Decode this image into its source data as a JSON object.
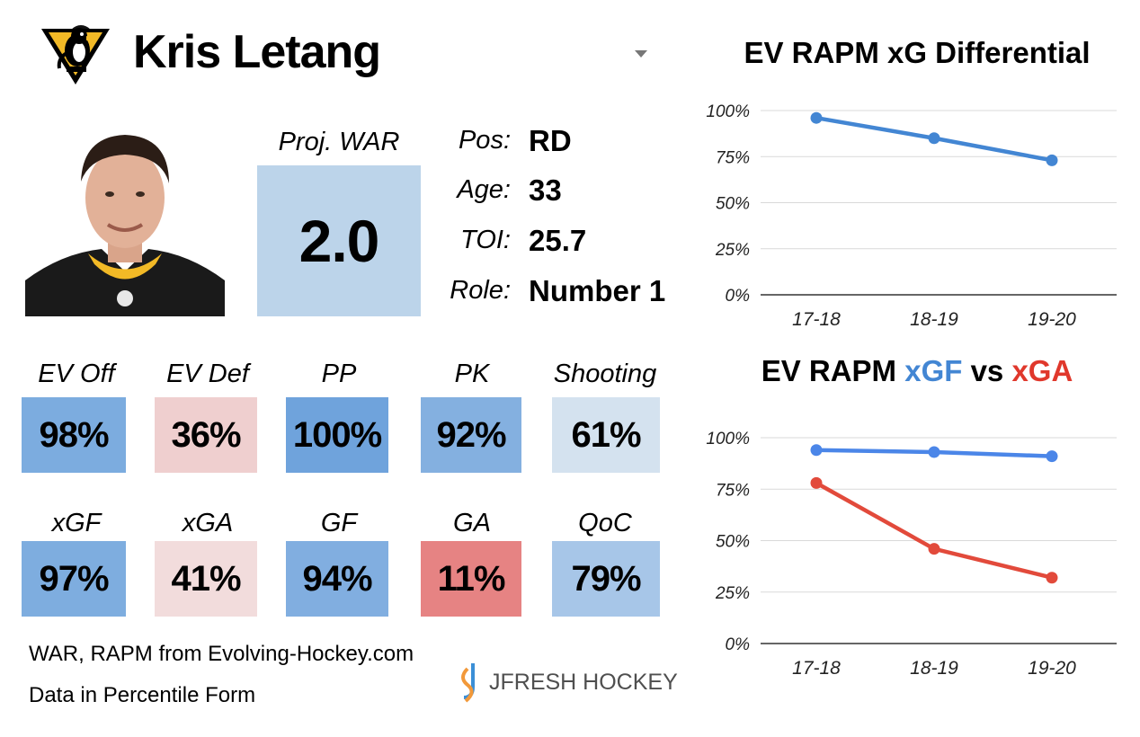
{
  "player": {
    "name": "Kris Letang",
    "logo_icon": "penguins-logo-icon",
    "photo_icon": "player-headshot-icon",
    "war_label": "Proj. WAR",
    "war_value": "2.0",
    "war_color": "#bcd4ea"
  },
  "info": [
    {
      "label": "Pos:",
      "value": "RD"
    },
    {
      "label": "Age:",
      "value": "33"
    },
    {
      "label": "TOI:",
      "value": "25.7"
    },
    {
      "label": "Role:",
      "value": "Number 1"
    }
  ],
  "tiles_row1": [
    {
      "label": "EV Off",
      "value": "98%",
      "color": "#7cacdf"
    },
    {
      "label": "EV Def",
      "value": "36%",
      "color": "#efcfcf"
    },
    {
      "label": "PP",
      "value": "100%",
      "color": "#6fa3dc"
    },
    {
      "label": "PK",
      "value": "92%",
      "color": "#84b0e0"
    },
    {
      "label": "Shooting",
      "value": "61%",
      "color": "#d4e2ef"
    }
  ],
  "tiles_row2": [
    {
      "label": "xGF",
      "value": "97%",
      "color": "#7eaddf"
    },
    {
      "label": "xGA",
      "value": "41%",
      "color": "#f2dcdc"
    },
    {
      "label": "GF",
      "value": "94%",
      "color": "#81aee0"
    },
    {
      "label": "GA",
      "value": "11%",
      "color": "#e68383"
    },
    {
      "label": "QoC",
      "value": "79%",
      "color": "#a7c6e8"
    }
  ],
  "footer": {
    "line1": "WAR, RAPM from  Evolving-Hockey.com",
    "line2": "Data in Percentile Form",
    "brand": "JFRESH HOCKEY",
    "brand_icon": "jfresh-hockey-logo-icon"
  },
  "chart_data": [
    {
      "type": "line",
      "title": "EV RAPM xG Differential",
      "categories": [
        "17-18",
        "18-19",
        "19-20"
      ],
      "series": [
        {
          "values": [
            96,
            85,
            73
          ],
          "color": "#4386d3"
        }
      ],
      "ylim": [
        0,
        100
      ],
      "yticks": [
        "100%",
        "75%",
        "50%",
        "25%",
        "0%"
      ],
      "grid": true
    },
    {
      "type": "line",
      "title_parts": [
        {
          "text": "EV RAPM ",
          "color": "#000000"
        },
        {
          "text": "xGF",
          "color": "#4386d3"
        },
        {
          "text": " vs ",
          "color": "#000000"
        },
        {
          "text": "xGA",
          "color": "#e0382c"
        }
      ],
      "categories": [
        "17-18",
        "18-19",
        "19-20"
      ],
      "series": [
        {
          "values": [
            94,
            93,
            91
          ],
          "color": "#4b86e8"
        },
        {
          "values": [
            78,
            46,
            32
          ],
          "color": "#e24a3b"
        }
      ],
      "ylim": [
        0,
        100
      ],
      "yticks": [
        "100%",
        "75%",
        "50%",
        "25%",
        "0%"
      ],
      "grid": true
    }
  ]
}
